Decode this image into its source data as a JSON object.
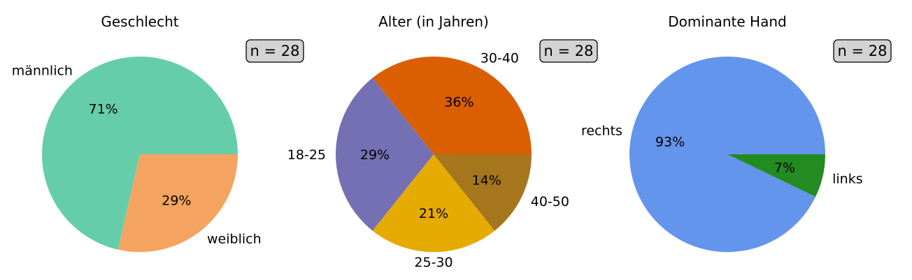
{
  "chart_data": [
    {
      "type": "pie",
      "title": "Geschlecht",
      "annotation": "n = 28",
      "slices": [
        {
          "label": "männlich",
          "value": 20,
          "pct_label": "71%",
          "color": "#66cdaa"
        },
        {
          "label": "weiblich",
          "value": 8,
          "pct_label": "29%",
          "color": "#f4a460"
        }
      ]
    },
    {
      "type": "pie",
      "title": "Alter (in Jahren)",
      "annotation": "n = 28",
      "slices": [
        {
          "label": "30-40",
          "value": 10,
          "pct_label": "36%",
          "color": "#d95f02"
        },
        {
          "label": "18-25",
          "value": 8,
          "pct_label": "29%",
          "color": "#7570b3"
        },
        {
          "label": "25-30",
          "value": 6,
          "pct_label": "21%",
          "color": "#e6ab02"
        },
        {
          "label": "40-50",
          "value": 4,
          "pct_label": "14%",
          "color": "#a6761d"
        }
      ]
    },
    {
      "type": "pie",
      "title": "Dominante Hand",
      "annotation": "n = 28",
      "slices": [
        {
          "label": "rechts",
          "value": 26,
          "pct_label": "93%",
          "color": "#6495ed"
        },
        {
          "label": "links",
          "value": 2,
          "pct_label": "7%",
          "color": "#228b22"
        }
      ]
    }
  ]
}
